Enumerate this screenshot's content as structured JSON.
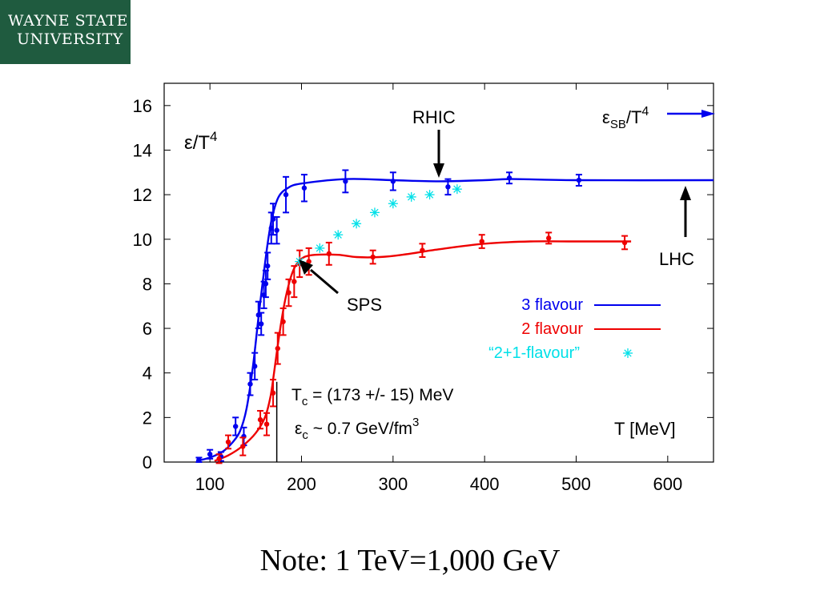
{
  "logo": {
    "line1": "WAYNE STATE",
    "line2": "UNIVERSITY"
  },
  "note": "Note: 1 TeV=1,000 GeV",
  "colors": {
    "three_flavour": "#0000ee",
    "two_flavour": "#ee0000",
    "two_plus_one": "#00e0e8",
    "logo_bg": "#1f5b3f"
  },
  "chart_data": {
    "type": "line",
    "ylabel": {
      "base": "ε/T",
      "sup": "4"
    },
    "xlabel": "T [MeV]",
    "xlim": [
      50,
      650
    ],
    "ylim": [
      0,
      17
    ],
    "xticks": [
      100,
      200,
      300,
      400,
      500,
      600
    ],
    "yticks": [
      0,
      2,
      4,
      6,
      8,
      10,
      12,
      14,
      16
    ],
    "grid": false,
    "legend_position": "right",
    "series": [
      {
        "name": "3 flavour",
        "color": "#0000ee",
        "points": [
          [
            88,
            0.1,
            0.1
          ],
          [
            100,
            0.35,
            0.2
          ],
          [
            112,
            0.25,
            0.2
          ],
          [
            128,
            1.6,
            0.4
          ],
          [
            137,
            1.15,
            0.4
          ],
          [
            144,
            3.5,
            0.5
          ],
          [
            149,
            4.3,
            0.6
          ],
          [
            153,
            6.6,
            0.6
          ],
          [
            156,
            6.2,
            0.5
          ],
          [
            159,
            7.5,
            0.6
          ],
          [
            161,
            8.0,
            0.6
          ],
          [
            163,
            8.8,
            0.6
          ],
          [
            167,
            10.5,
            0.7
          ],
          [
            169,
            10.9,
            0.7
          ],
          [
            173,
            10.4,
            0.6
          ],
          [
            183,
            12.0,
            0.8
          ],
          [
            203,
            12.3,
            0.6
          ],
          [
            248,
            12.6,
            0.5
          ],
          [
            300,
            12.6,
            0.4
          ],
          [
            360,
            12.35,
            0.35
          ],
          [
            427,
            12.75,
            0.25
          ],
          [
            503,
            12.65,
            0.25
          ]
        ],
        "curve": [
          [
            85,
            0.05
          ],
          [
            100,
            0.2
          ],
          [
            115,
            0.5
          ],
          [
            125,
            0.9
          ],
          [
            133,
            1.4
          ],
          [
            140,
            2.4
          ],
          [
            147,
            4.3
          ],
          [
            153,
            6.5
          ],
          [
            158,
            8.2
          ],
          [
            163,
            9.8
          ],
          [
            168,
            11.0
          ],
          [
            175,
            11.9
          ],
          [
            185,
            12.3
          ],
          [
            200,
            12.5
          ],
          [
            250,
            12.7
          ],
          [
            300,
            12.65
          ],
          [
            350,
            12.6
          ],
          [
            400,
            12.65
          ],
          [
            430,
            12.7
          ],
          [
            500,
            12.65
          ],
          [
            650,
            12.65
          ]
        ]
      },
      {
        "name": "2 flavour",
        "color": "#ee0000",
        "points": [
          [
            110,
            0.15,
            0.2
          ],
          [
            120,
            0.9,
            0.3
          ],
          [
            136,
            0.7,
            0.4
          ],
          [
            155,
            1.9,
            0.4
          ],
          [
            162,
            1.7,
            0.5
          ],
          [
            169,
            3.1,
            0.6
          ],
          [
            174,
            5.1,
            0.7
          ],
          [
            180,
            6.3,
            0.6
          ],
          [
            186,
            7.6,
            0.6
          ],
          [
            192,
            8.1,
            0.7
          ],
          [
            198,
            8.9,
            0.6
          ],
          [
            208,
            9.0,
            0.6
          ],
          [
            230,
            9.35,
            0.5
          ],
          [
            278,
            9.2,
            0.3
          ],
          [
            332,
            9.5,
            0.3
          ],
          [
            397,
            9.9,
            0.3
          ],
          [
            470,
            10.05,
            0.25
          ],
          [
            553,
            9.85,
            0.3
          ]
        ],
        "curve": [
          [
            105,
            0.05
          ],
          [
            120,
            0.3
          ],
          [
            135,
            0.7
          ],
          [
            150,
            1.3
          ],
          [
            160,
            2.0
          ],
          [
            166,
            2.9
          ],
          [
            170,
            4.0
          ],
          [
            175,
            5.5
          ],
          [
            180,
            6.8
          ],
          [
            185,
            7.8
          ],
          [
            190,
            8.5
          ],
          [
            195,
            8.9
          ],
          [
            203,
            9.2
          ],
          [
            215,
            9.3
          ],
          [
            240,
            9.3
          ],
          [
            260,
            9.2
          ],
          [
            285,
            9.2
          ],
          [
            310,
            9.3
          ],
          [
            350,
            9.55
          ],
          [
            400,
            9.8
          ],
          [
            450,
            9.9
          ],
          [
            500,
            9.9
          ],
          [
            560,
            9.9
          ]
        ]
      },
      {
        "name": "“2+1-flavour”",
        "color": "#00e0e8",
        "points": [
          [
            198,
            9.0
          ],
          [
            220,
            9.6
          ],
          [
            240,
            10.2
          ],
          [
            260,
            10.7
          ],
          [
            280,
            11.2
          ],
          [
            300,
            11.6
          ],
          [
            320,
            11.9
          ],
          [
            340,
            12.0
          ],
          [
            370,
            12.25
          ]
        ]
      }
    ],
    "annotations": {
      "rhic": "RHIC",
      "lhc": "LHC",
      "sps": "SPS",
      "esb": {
        "base": "ε",
        "sub": "SB",
        "rest": "/T",
        "sup": "4"
      },
      "tc": {
        "base": "T",
        "sub": "c",
        "rest": " = (173 +/- 15) MeV"
      },
      "ec": {
        "base": "ε",
        "sub": "c",
        "rest": " ~ 0.7 GeV/fm",
        "sup": "3"
      },
      "tc_line_x": 173
    }
  }
}
